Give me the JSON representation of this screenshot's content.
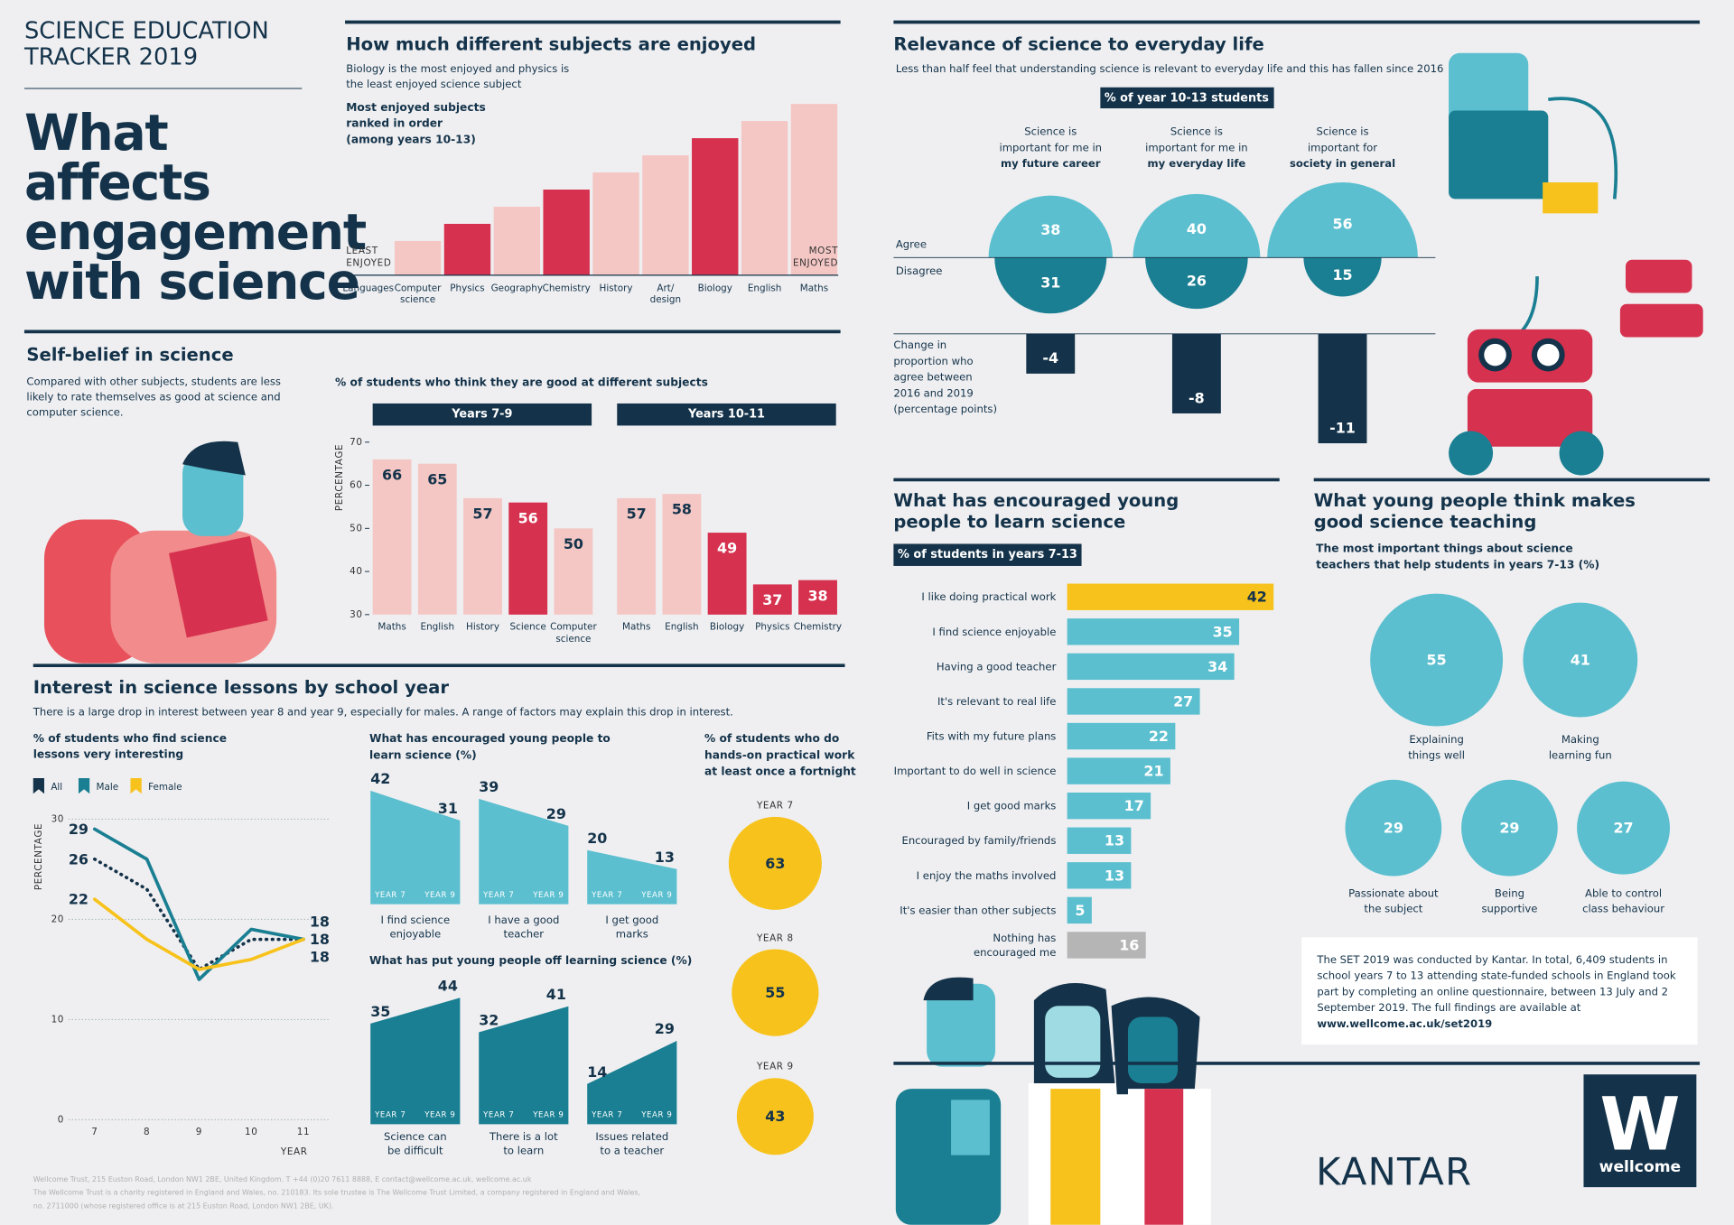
{
  "header": {
    "kicker": [
      "SCIENCE EDUCATION",
      "TRACKER 2019"
    ],
    "title": [
      "What",
      "affects",
      "engagement",
      "with science"
    ]
  },
  "chart_data": [
    {
      "type": "bar",
      "title": "How much different subjects are enjoyed",
      "subtitle": [
        "Biology is the most enjoyed and physics is",
        "the least enjoyed science subject"
      ],
      "label": [
        "Most enjoyed subjects",
        "ranked in order",
        "(among years 10-13)"
      ],
      "low_label": [
        "LEAST",
        "ENJOYED"
      ],
      "high_label": [
        "MOST",
        "ENJOYED"
      ],
      "categories": [
        [
          "Languages"
        ],
        [
          "Computer",
          "science"
        ],
        [
          "Physics"
        ],
        [
          "Geography"
        ],
        [
          "Chemistry"
        ],
        [
          "History"
        ],
        [
          "Art/",
          "design"
        ],
        [
          "Biology"
        ],
        [
          "English"
        ],
        [
          "Maths"
        ]
      ],
      "values": [
        0,
        2,
        3,
        4,
        5,
        6,
        7,
        8,
        9,
        10
      ],
      "ylim": [
        0,
        10
      ],
      "colors": [
        "#f4c7c5",
        "#f4c7c5",
        "#d6314e",
        "#f4c7c5",
        "#d6314e",
        "#f4c7c5",
        "#f4c7c5",
        "#d6314e",
        "#f4c7c5",
        "#f4c7c5"
      ]
    },
    {
      "type": "semicircle",
      "title": "Relevance of science to everyday life",
      "subtitle": "Less than half feel that understanding science is relevant to everyday life and this has fallen since 2016",
      "badge": "% of year 10-13 students",
      "categories": [
        [
          "Science is",
          "important for me in",
          "my future career"
        ],
        [
          "Science is",
          "important for me in",
          "my everyday life"
        ],
        [
          "Science is",
          "important for",
          "society in general"
        ]
      ],
      "series": [
        {
          "name": "Agree",
          "color": "#5bbfcf",
          "values": [
            38,
            40,
            56
          ]
        },
        {
          "name": "Disagree",
          "color": "#1a7f92",
          "values": [
            31,
            26,
            15
          ]
        }
      ],
      "change": {
        "label": [
          "Change in",
          "proportion who",
          "agree between",
          "2016 and 2019",
          "(percentage points)"
        ],
        "values": [
          -4,
          -8,
          -11
        ],
        "color": "#14334a"
      }
    },
    {
      "type": "grouped-bar",
      "title": "Self-belief in science",
      "description": [
        "Compared with other subjects, students are less",
        "likely to rate themselves as good at science and",
        "computer science."
      ],
      "chart_title": "% of students who think they are good at different subjects",
      "y_label": "PERCENTAGE",
      "ylim": [
        30,
        70
      ],
      "yticks": [
        30,
        40,
        50,
        60,
        70
      ],
      "groups": [
        {
          "name": "Years 7-9",
          "categories": [
            [
              "Maths"
            ],
            [
              "English"
            ],
            [
              "History"
            ],
            [
              "Science"
            ],
            [
              "Computer",
              "science"
            ]
          ],
          "values": [
            66,
            65,
            57,
            56,
            50
          ],
          "colors": [
            "#f4c7c5",
            "#f4c7c5",
            "#f4c7c5",
            "#d6314e",
            "#f4c7c5"
          ]
        },
        {
          "name": "Years 10-11",
          "categories": [
            [
              "Maths"
            ],
            [
              "English"
            ],
            [
              "Biology"
            ],
            [
              "Physics"
            ],
            [
              "Chemistry"
            ]
          ],
          "values": [
            57,
            58,
            49,
            37,
            38
          ],
          "colors": [
            "#f4c7c5",
            "#f4c7c5",
            "#d6314e",
            "#d6314e",
            "#d6314e"
          ]
        }
      ]
    },
    {
      "type": "line",
      "title": "Interest in science lessons by school year",
      "description": "There is a large drop in interest between year 8 and year 9, especially for males. A range of factors may explain this drop in interest.",
      "chart_title": [
        "% of students who find science",
        "lessons very interesting"
      ],
      "x_label": "YEAR",
      "y_label": "PERCENTAGE",
      "x": [
        7,
        8,
        9,
        10,
        11
      ],
      "xlim": [
        6.5,
        11.5
      ],
      "xticks": [
        7,
        8,
        9,
        10,
        11
      ],
      "ylim": [
        0,
        30
      ],
      "yticks": [
        0,
        10,
        20,
        30
      ],
      "grid": true,
      "series": [
        {
          "name": "All",
          "color": "#14334a",
          "style": "dotted",
          "values": [
            26,
            23,
            15,
            18,
            18
          ]
        },
        {
          "name": "Male",
          "color": "#1a7f92",
          "style": "solid",
          "values": [
            29,
            26,
            14,
            19,
            18
          ]
        },
        {
          "name": "Female",
          "color": "#f7c21b",
          "style": "solid",
          "values": [
            22,
            18,
            15,
            16,
            18
          ]
        }
      ]
    },
    {
      "type": "slope-area",
      "title": [
        "What has encouraged young people to",
        "learn science (%)"
      ],
      "color": "#5bbfcf",
      "ylim": [
        0,
        45
      ],
      "categories": [
        [
          "I find science",
          "enjoyable"
        ],
        [
          "I have a good",
          "teacher"
        ],
        [
          "I get good",
          "marks"
        ]
      ],
      "series": [
        {
          "name": "YEAR 7",
          "values": [
            42,
            39,
            20
          ]
        },
        {
          "name": "YEAR 9",
          "values": [
            31,
            29,
            13
          ]
        }
      ]
    },
    {
      "type": "slope-area",
      "title": [
        "What has put young people off learning science (%)"
      ],
      "color": "#1a7f92",
      "ylim": [
        0,
        45
      ],
      "categories": [
        [
          "Science can",
          "be difficult"
        ],
        [
          "There is a lot",
          "to learn"
        ],
        [
          "Issues related",
          "to a teacher"
        ]
      ],
      "series": [
        {
          "name": "YEAR 7",
          "values": [
            35,
            32,
            14
          ]
        },
        {
          "name": "YEAR 9",
          "values": [
            44,
            41,
            29
          ]
        }
      ]
    },
    {
      "type": "bubble",
      "title": [
        "% of students who do",
        "hands-on practical work",
        "at least once a fortnight"
      ],
      "categories": [
        [
          "YEAR 7"
        ],
        [
          "YEAR 8"
        ],
        [
          "YEAR 9"
        ]
      ],
      "values": [
        63,
        55,
        43
      ],
      "color": "#f7c21b"
    },
    {
      "type": "hbar",
      "title": [
        "What has encouraged young",
        "people to learn science"
      ],
      "badge": "% of students in years 7-13",
      "xlim": [
        0,
        45
      ],
      "categories": [
        [
          "I like doing practical work"
        ],
        [
          "I find science enjoyable"
        ],
        [
          "Having a good teacher"
        ],
        [
          "It's relevant to real life"
        ],
        [
          "Fits with my future plans"
        ],
        [
          "Important to do well in science"
        ],
        [
          "I get good marks"
        ],
        [
          "Encouraged by family/friends"
        ],
        [
          "I enjoy the maths involved"
        ],
        [
          "It's easier than other subjects"
        ],
        [
          "Nothing has",
          "encouraged me"
        ]
      ],
      "values": [
        42,
        35,
        34,
        27,
        22,
        21,
        17,
        13,
        13,
        5,
        16
      ],
      "colors": [
        "#f7c21b",
        "#5bbfcf",
        "#5bbfcf",
        "#5bbfcf",
        "#5bbfcf",
        "#5bbfcf",
        "#5bbfcf",
        "#5bbfcf",
        "#5bbfcf",
        "#5bbfcf",
        "#b5b5b5"
      ]
    },
    {
      "type": "bubble",
      "title": [
        "What young people think makes",
        "good science teaching"
      ],
      "subtitle": [
        "The most important things about science",
        "teachers that help students in years 7-13 (%)"
      ],
      "categories": [
        [
          "Explaining",
          "things well"
        ],
        [
          "Making",
          "learning fun"
        ],
        [
          "Passionate about",
          "the subject"
        ],
        [
          "Being",
          "supportive"
        ],
        [
          "Able to control",
          "class behaviour"
        ]
      ],
      "values": [
        55,
        41,
        29,
        29,
        27
      ],
      "color": "#5bbfcf"
    }
  ],
  "note": [
    "The SET 2019 was conducted by Kantar. In total, 6,409 students in",
    "school years 7 to 13 attending state-funded schools in England took",
    "part by completing an online questionnaire, between 13 July and 2",
    "September 2019. The full findings are available at",
    "www.wellcome.ac.uk/set2019"
  ],
  "logos": {
    "kantar": "KANTAR",
    "wellcome_mark": "W",
    "wellcome": "wellcome"
  },
  "footer": [
    "Wellcome Trust, 215 Euston Road, London NW1 2BE, United Kingdom. T +44 (0)20 7611 8888, E contact@wellcome.ac.uk, wellcome.ac.uk",
    "The Wellcome Trust is a charity registered in England and Wales, no. 210183. Its sole trustee is The Wellcome Trust Limited, a company registered in England and Wales,",
    "no. 2711000 (whose registered office is at 215 Euston Road, London NW1 2BE, UK)."
  ]
}
